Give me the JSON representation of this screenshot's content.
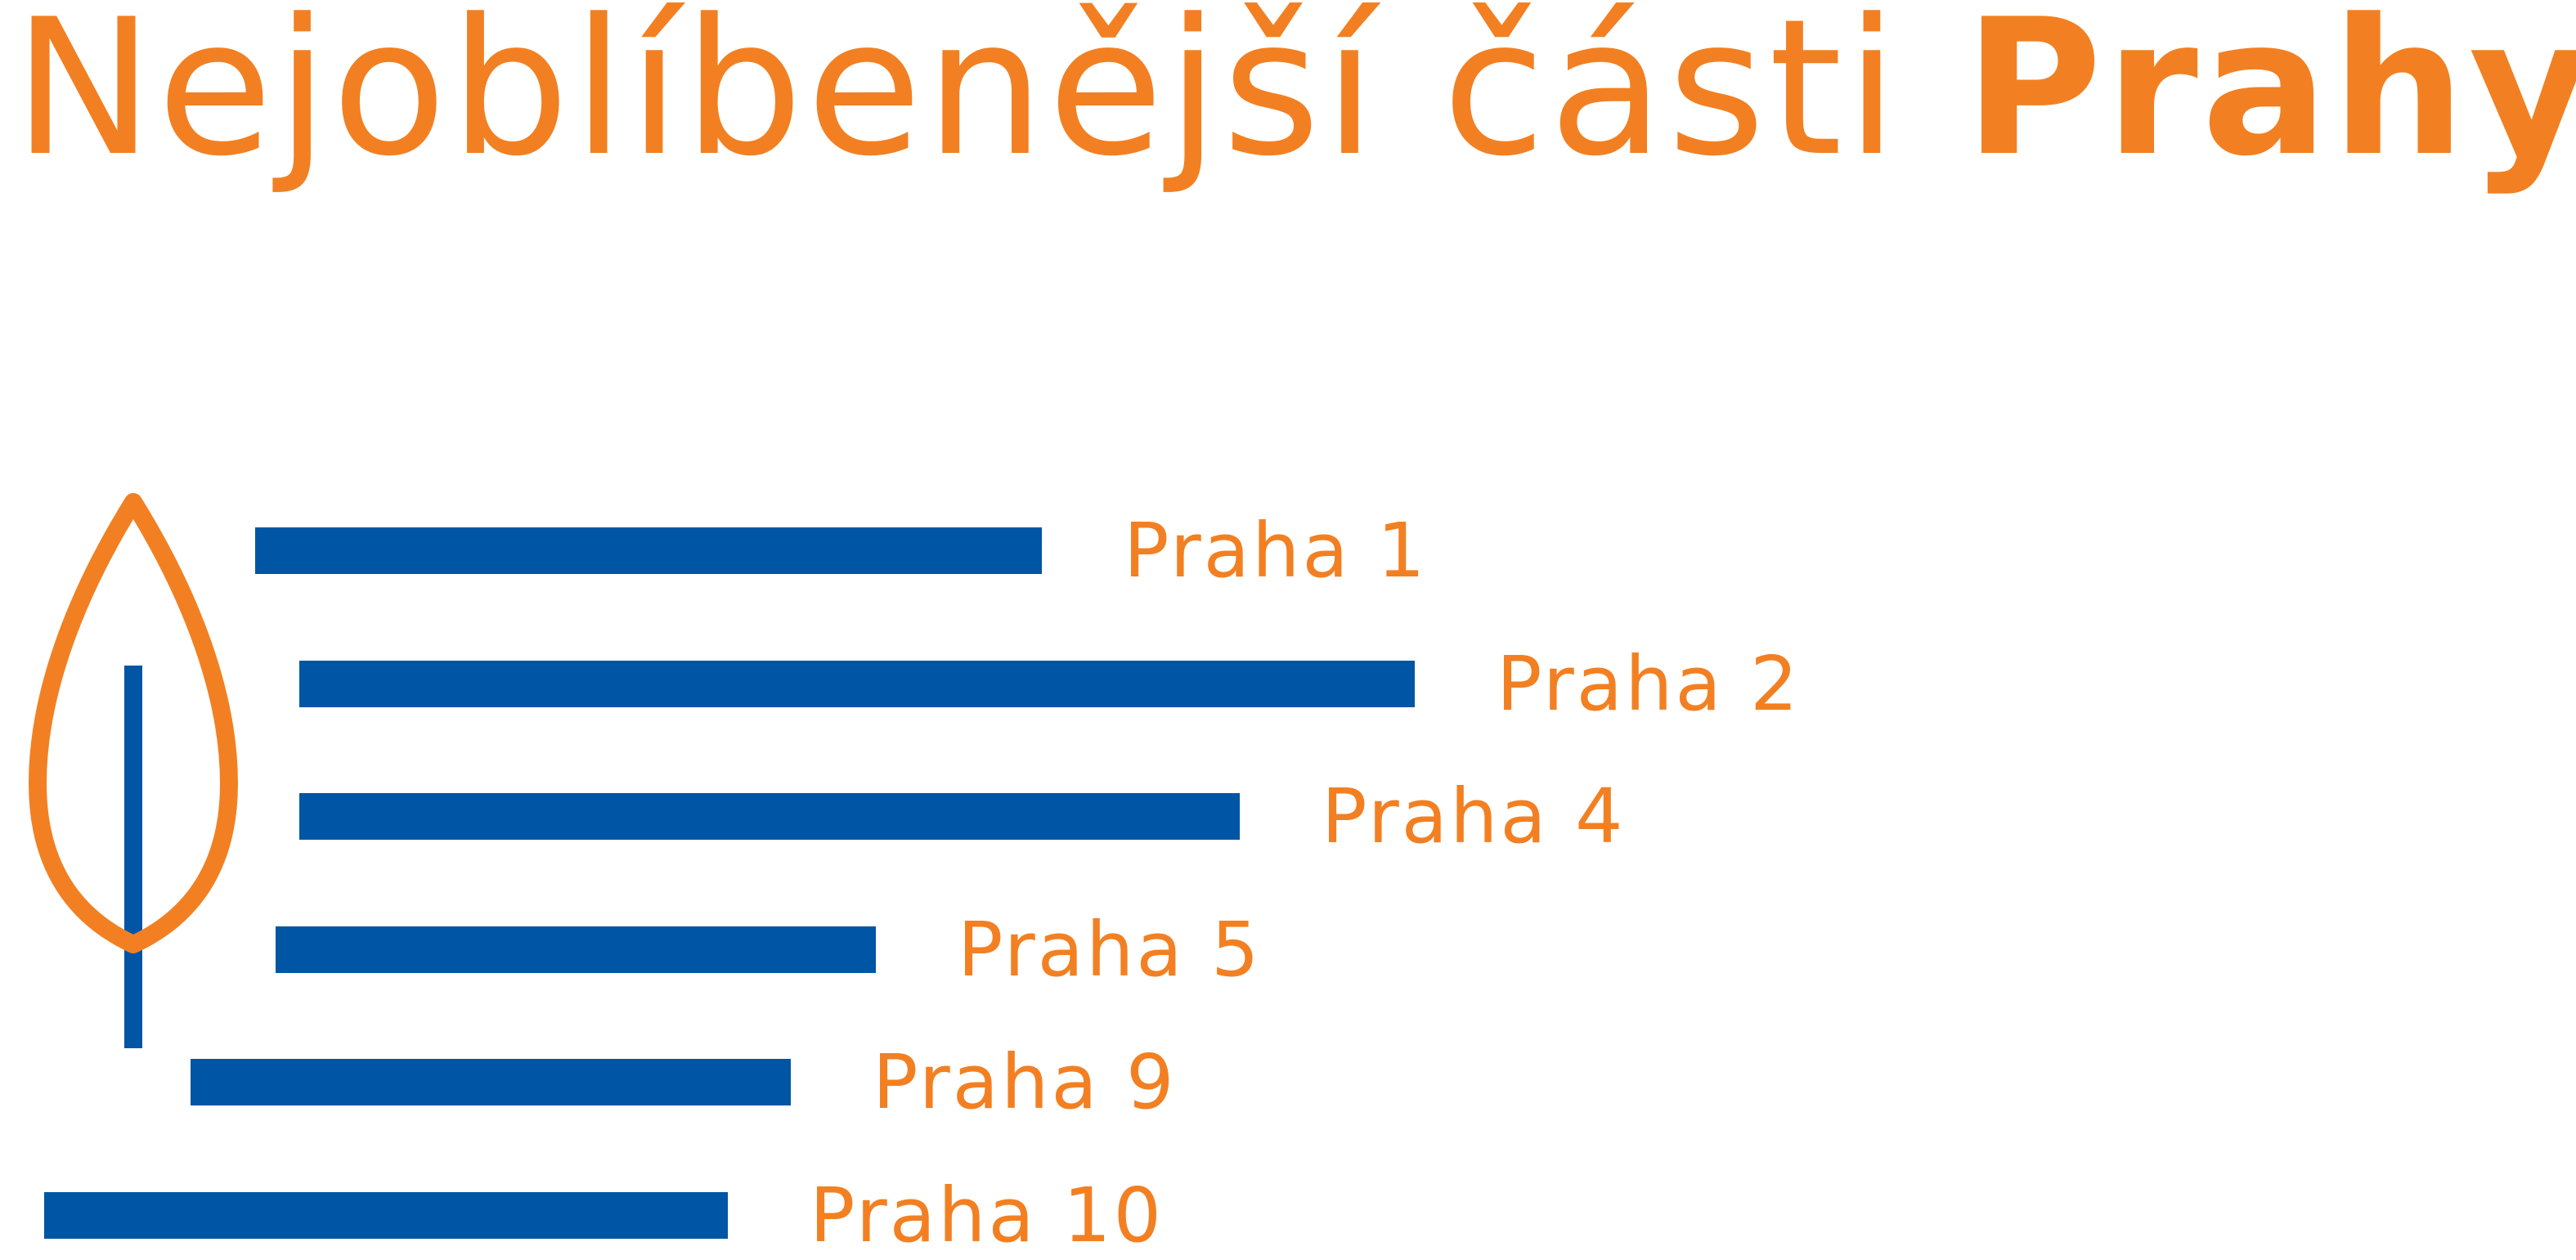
{
  "title": {
    "text": "Nejoblíbenější části ",
    "emphasis": "Prahy:"
  },
  "colors": {
    "accent": "#f28022",
    "bar": "#0055a4",
    "background": "#ffffff"
  },
  "icon": "leaf-tree-icon",
  "chart_data": {
    "type": "bar",
    "orientation": "horizontal",
    "title": "Nejoblíbenější části Prahy:",
    "categories": [
      "Praha 1",
      "Praha 2",
      "Praha 4",
      "Praha 5",
      "Praha 9",
      "Praha 10"
    ],
    "values": [
      962,
      1364,
      1150,
      734,
      734,
      836
    ],
    "value_axis": "none",
    "grid": false,
    "legend": "none"
  }
}
